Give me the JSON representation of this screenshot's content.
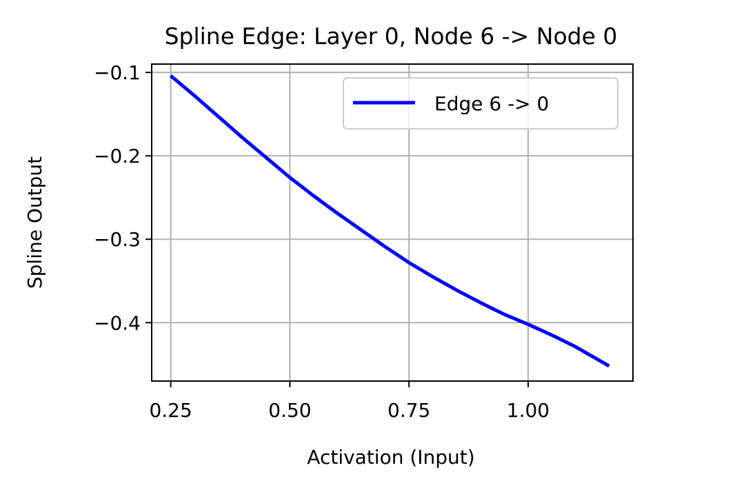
{
  "chart_data": {
    "type": "line",
    "title": "Spline Edge: Layer 0, Node 6 -> Node 0",
    "xlabel": "Activation (Input)",
    "ylabel": "Spline Output",
    "xlim": [
      0.21,
      1.22
    ],
    "ylim": [
      -0.47,
      -0.09
    ],
    "xticks": [
      0.25,
      0.5,
      0.75,
      1.0
    ],
    "xtick_labels": [
      "0.25",
      "0.50",
      "0.75",
      "1.00"
    ],
    "yticks": [
      -0.1,
      -0.2,
      -0.3,
      -0.4
    ],
    "ytick_labels": [
      "−0.1",
      "−0.2",
      "−0.3",
      "−0.4"
    ],
    "grid": true,
    "legend_position": "top-right",
    "series": [
      {
        "name": "Edge 6 -> 0",
        "color": "#0000ff",
        "x": [
          0.25,
          0.3,
          0.35,
          0.4,
          0.45,
          0.5,
          0.55,
          0.6,
          0.65,
          0.7,
          0.75,
          0.8,
          0.85,
          0.9,
          0.95,
          1.0,
          1.05,
          1.1,
          1.17
        ],
        "y": [
          -0.104,
          -0.128,
          -0.153,
          -0.178,
          -0.202,
          -0.226,
          -0.248,
          -0.269,
          -0.289,
          -0.309,
          -0.328,
          -0.345,
          -0.361,
          -0.376,
          -0.39,
          -0.402,
          -0.415,
          -0.429,
          -0.452
        ]
      }
    ]
  }
}
